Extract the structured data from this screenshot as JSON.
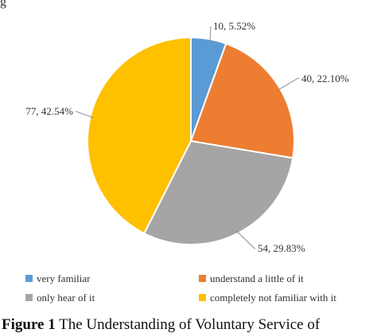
{
  "top_fragment": "g",
  "chart_data": {
    "type": "pie",
    "categories": [
      "very familiar",
      "understand a little of it",
      "only hear of it",
      "completely not familiar with it"
    ],
    "values": [
      10,
      40,
      54,
      77
    ],
    "percentages": [
      "5.52%",
      "22.10%",
      "29.83%",
      "42.54%"
    ],
    "data_labels": [
      "10, 5.52%",
      "40, 22.10%",
      "54, 29.83%",
      "77, 42.54%"
    ],
    "colors": [
      "#5b9bd5",
      "#ed7d31",
      "#a5a5a5",
      "#ffc000"
    ],
    "legend_placement": "bottom",
    "start_angle_deg": 0,
    "direction": "clockwise"
  },
  "caption": {
    "label": "Figure 1",
    "text": " The Understanding of Voluntary Service of"
  }
}
